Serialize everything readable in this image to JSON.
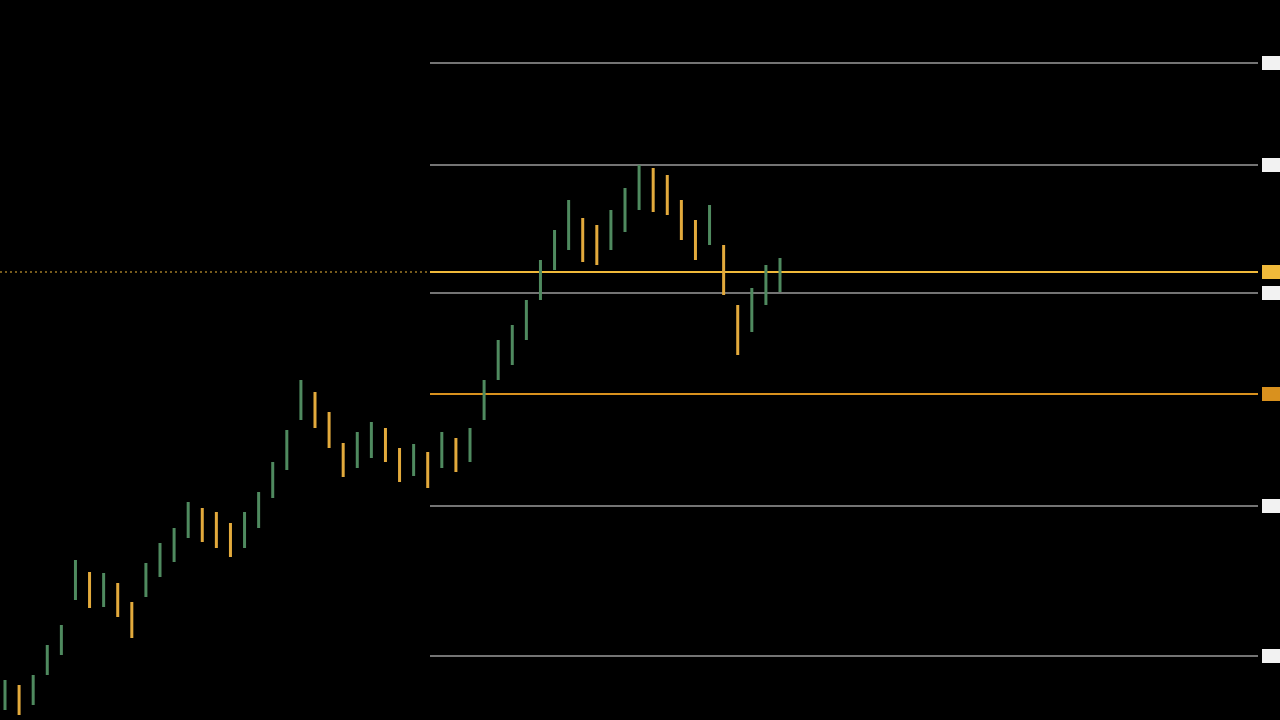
{
  "chart_data": {
    "type": "range-bar",
    "ylim": [
      0,
      720
    ],
    "up_color": "#4f8a5f",
    "down_color": "#e3aa3c",
    "lows": [
      10,
      5,
      15,
      45,
      65,
      120,
      112,
      113,
      103,
      82,
      123,
      143,
      158,
      182,
      178,
      172,
      163,
      172,
      192,
      222,
      250,
      300,
      292,
      272,
      243,
      252,
      262,
      258,
      238,
      244,
      232,
      252,
      248,
      258,
      300,
      340,
      355,
      380,
      420,
      450,
      470,
      458,
      455,
      470,
      488,
      510,
      508,
      505,
      480,
      460,
      475,
      425,
      365,
      388,
      415,
      428
    ],
    "highs": [
      40,
      35,
      45,
      75,
      95,
      160,
      148,
      147,
      137,
      118,
      157,
      177,
      192,
      218,
      212,
      208,
      197,
      208,
      228,
      258,
      290,
      340,
      328,
      308,
      277,
      288,
      298,
      292,
      272,
      276,
      268,
      288,
      282,
      292,
      340,
      380,
      395,
      420,
      460,
      490,
      520,
      502,
      495,
      510,
      532,
      555,
      552,
      545,
      520,
      500,
      515,
      475,
      415,
      432,
      455,
      462
    ],
    "levels": [
      {
        "value": 657,
        "color": "#9a9a9a"
      },
      {
        "value": 555,
        "color": "#9a9a9a"
      },
      {
        "value": 448,
        "color": "#f0b93a"
      },
      {
        "value": 427,
        "color": "#9a9a9a"
      },
      {
        "value": 326,
        "color": "#d9911e"
      },
      {
        "value": 214,
        "color": "#9a9a9a"
      },
      {
        "value": 64,
        "color": "#9a9a9a"
      }
    ]
  }
}
